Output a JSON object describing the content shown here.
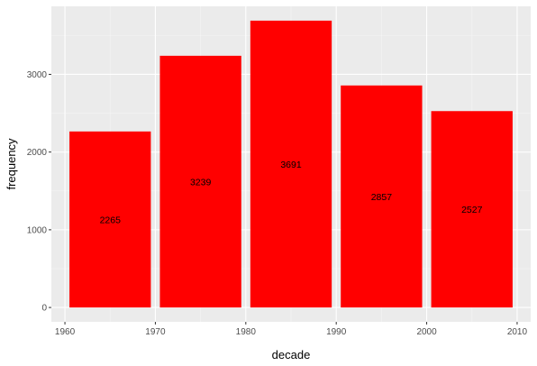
{
  "chart_data": {
    "type": "bar",
    "categories": [
      "1960s",
      "1970s",
      "1980s",
      "1990s",
      "2000s"
    ],
    "bins": [
      {
        "start": 1960.5,
        "end": 1969.5,
        "value": 2265
      },
      {
        "start": 1970.5,
        "end": 1979.5,
        "value": 3239
      },
      {
        "start": 1980.5,
        "end": 1989.5,
        "value": 3691
      },
      {
        "start": 1990.5,
        "end": 1999.5,
        "value": 2857
      },
      {
        "start": 2000.5,
        "end": 2009.5,
        "value": 2527
      }
    ],
    "values": [
      2265,
      3239,
      3691,
      2857,
      2527
    ],
    "data_labels": [
      "2265",
      "3239",
      "3691",
      "2857",
      "2527"
    ],
    "title": "",
    "xlabel": "decade",
    "ylabel": "frequency",
    "xlim": [
      1958.5,
      2011.5
    ],
    "ylim": [
      -184.55,
      3875.55
    ],
    "xticks": [
      1960,
      1970,
      1980,
      1990,
      2000,
      2010
    ],
    "xtick_labels": [
      "1960",
      "1970",
      "1980",
      "1990",
      "2000",
      "2010"
    ],
    "yticks": [
      0,
      1000,
      2000,
      3000
    ],
    "ytick_labels": [
      "0",
      "1000",
      "2000",
      "3000"
    ],
    "grid": true,
    "legend": "none",
    "colors": {
      "bar": "#ff0000",
      "panel_background": "#ebebeb",
      "grid_major": "#ffffff",
      "grid_minor": "#f5f5f5",
      "tick": "#333333"
    }
  }
}
